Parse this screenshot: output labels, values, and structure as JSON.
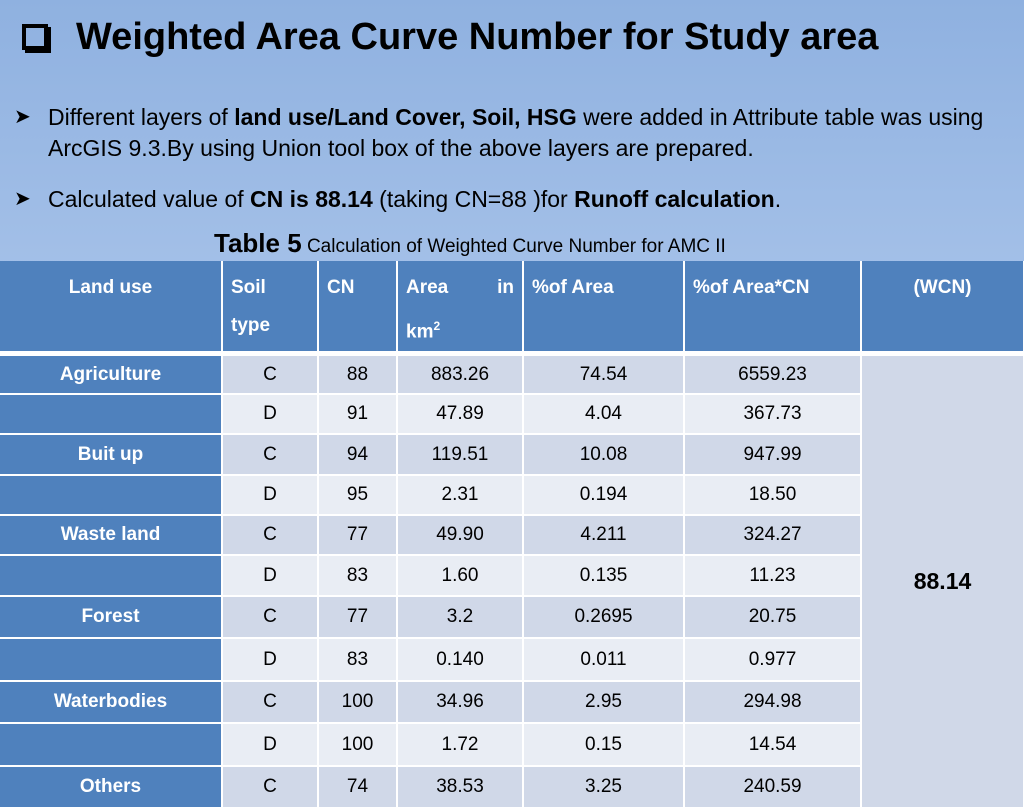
{
  "title": "Weighted Area Curve Number for Study area",
  "bullets": {
    "b1": {
      "t1": "Different layers of ",
      "s1": "land use/Land Cover, Soil, HSG",
      "t2": " were added in Attribute table was using ArcGIS 9.3.By using Union tool box of the above layers are prepared."
    },
    "b2": {
      "t1": "Calculated value of ",
      "s1": "CN is 88.14",
      "t2": " (taking CN=88 )for ",
      "s2": "Runoff calculation",
      "t3": "."
    }
  },
  "caption": {
    "lead": "Table 5",
    "rest": " Calculation of Weighted Curve Number for AMC II"
  },
  "table": {
    "headers": {
      "land_use": "Land use",
      "soil_type": "Soil type",
      "cn": "CN",
      "area_a": "Area",
      "area_b": "in",
      "area_c": "km",
      "area_sup": "2",
      "pct_area": "%of Area",
      "pct_area_cn": "%of Area*CN",
      "wcn": "(WCN)"
    },
    "wcn_value": "88.14",
    "rows": [
      {
        "land": "Agriculture",
        "soil": "C",
        "cn": "88",
        "area": "883.26",
        "pct": "74.54",
        "pctcn": "6559.23"
      },
      {
        "land": "",
        "soil": "D",
        "cn": "91",
        "area": "47.89",
        "pct": "4.04",
        "pctcn": "367.73"
      },
      {
        "land": "Buit up",
        "soil": "C",
        "cn": "94",
        "area": "119.51",
        "pct": "10.08",
        "pctcn": "947.99"
      },
      {
        "land": "",
        "soil": "D",
        "cn": "95",
        "area": "2.31",
        "pct": "0.194",
        "pctcn": "18.50"
      },
      {
        "land": "Waste land",
        "soil": "C",
        "cn": "77",
        "area": "49.90",
        "pct": "4.211",
        "pctcn": "324.27"
      },
      {
        "land": "",
        "soil": "D",
        "cn": "83",
        "area": "1.60",
        "pct": "0.135",
        "pctcn": "11.23"
      },
      {
        "land": "Forest",
        "soil": "C",
        "cn": "77",
        "area": "3.2",
        "pct": "0.2695",
        "pctcn": "20.75"
      },
      {
        "land": "",
        "soil": "D",
        "cn": "83",
        "area": "0.140",
        "pct": "0.011",
        "pctcn": "0.977"
      },
      {
        "land": "Waterbodies",
        "soil": "C",
        "cn": "100",
        "area": "34.96",
        "pct": "2.95",
        "pctcn": "294.98"
      },
      {
        "land": "",
        "soil": "D",
        "cn": "100",
        "area": "1.72",
        "pct": "0.15",
        "pctcn": "14.54"
      },
      {
        "land": "Others",
        "soil": "C",
        "cn": "74",
        "area": "38.53",
        "pct": "3.25",
        "pctcn": "240.59"
      }
    ]
  },
  "icons": {
    "title_bullet": "checkbox-icon",
    "list_bullet": "arrow-bullet-icon"
  },
  "colors": {
    "header_blue": "#4f81bd",
    "row_light": "#d0d8e8",
    "row_lighter": "#e9edf4"
  }
}
